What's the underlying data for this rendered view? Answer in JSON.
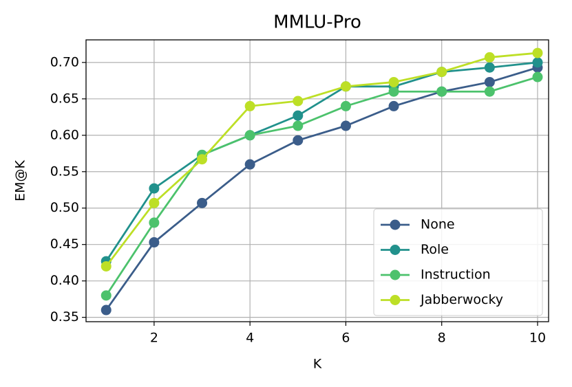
{
  "chart_data": {
    "type": "line",
    "title": "MMLU-Pro",
    "x_label": "K",
    "y_label": "EM@K",
    "x": [
      1,
      2,
      3,
      4,
      5,
      6,
      7,
      8,
      9,
      10
    ],
    "series": [
      {
        "name": "None",
        "color": "#3b5d8a",
        "values": [
          0.36,
          0.453,
          0.507,
          0.56,
          0.593,
          0.613,
          0.64,
          0.66,
          0.673,
          0.693
        ]
      },
      {
        "name": "Role",
        "color": "#21918c",
        "values": [
          0.427,
          0.527,
          0.573,
          0.6,
          0.627,
          0.667,
          0.667,
          0.687,
          0.693,
          0.7
        ]
      },
      {
        "name": "Instruction",
        "color": "#4cc26c",
        "values": [
          0.38,
          0.48,
          0.573,
          0.6,
          0.613,
          0.64,
          0.66,
          0.66,
          0.66,
          0.68
        ]
      },
      {
        "name": "Jabberwocky",
        "color": "#bddf26",
        "values": [
          0.42,
          0.507,
          0.567,
          0.64,
          0.647,
          0.667,
          0.673,
          0.687,
          0.707,
          0.713
        ]
      }
    ],
    "xlim": [
      0.58,
      10.23
    ],
    "ylim": [
      0.344,
      0.731
    ],
    "xticks": [
      2,
      4,
      6,
      8,
      10
    ],
    "yticks": [
      {
        "value": 0.35,
        "label": "0.35"
      },
      {
        "value": 0.4,
        "label": "0.40"
      },
      {
        "value": 0.45,
        "label": "0.45"
      },
      {
        "value": 0.5,
        "label": "0.50"
      },
      {
        "value": 0.55,
        "label": "0.55"
      },
      {
        "value": 0.6,
        "label": "0.60"
      },
      {
        "value": 0.65,
        "label": "0.65"
      },
      {
        "value": 0.7,
        "label": "0.70"
      }
    ],
    "grid": true,
    "legend": "lower right"
  }
}
